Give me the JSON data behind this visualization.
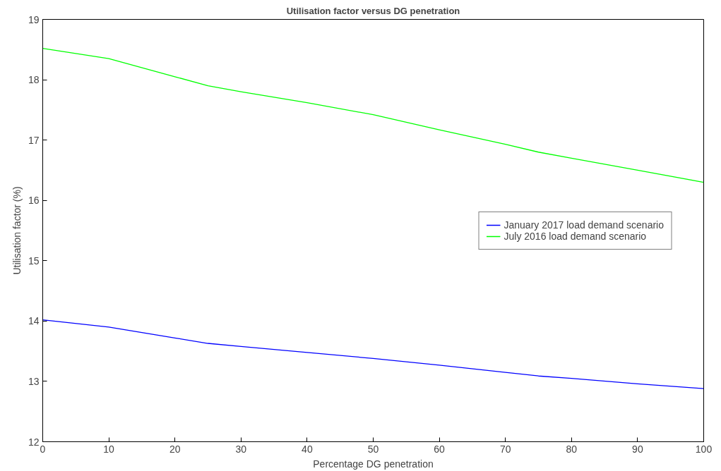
{
  "chart_data": {
    "type": "line",
    "title": "Utilisation factor versus DG penetration",
    "xlabel": "Percentage DG penetration",
    "ylabel": "Utilisation factor (%)",
    "x": [
      0,
      10,
      20,
      25,
      30,
      40,
      50,
      60,
      70,
      75,
      80,
      90,
      100
    ],
    "series": [
      {
        "name": "January 2017 load demand scenario",
        "color": "#0000ff",
        "values": [
          14.02,
          13.9,
          13.72,
          13.63,
          13.58,
          13.48,
          13.38,
          13.27,
          13.15,
          13.09,
          13.05,
          12.96,
          12.88
        ]
      },
      {
        "name": "July 2016 load demand scenario",
        "color": "#00ff00",
        "values": [
          18.52,
          18.35,
          18.05,
          17.9,
          17.8,
          17.62,
          17.42,
          17.17,
          16.93,
          16.8,
          16.7,
          16.5,
          16.3
        ]
      }
    ],
    "xlim": [
      0,
      100
    ],
    "xticks": [
      0,
      10,
      20,
      30,
      40,
      50,
      60,
      70,
      80,
      90,
      100
    ],
    "ylim": [
      12,
      19
    ],
    "yticks": [
      12,
      13,
      14,
      15,
      16,
      17,
      18,
      19
    ],
    "grid": false,
    "legend": "center right",
    "marker": "none",
    "line_style": "solid"
  }
}
